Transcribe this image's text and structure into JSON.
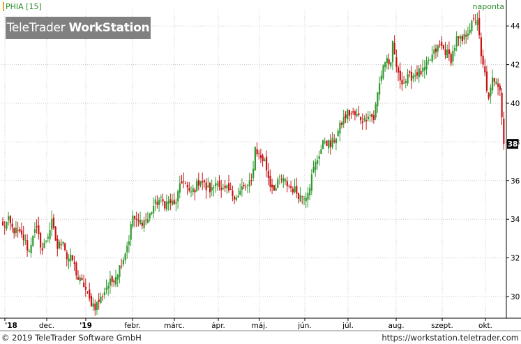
{
  "header": {
    "symbol": "PHIA [15]",
    "interval": "naponta",
    "watermark_regular": "TeleTrader ",
    "watermark_bold": "WorkStation"
  },
  "footer": {
    "copyright": "© 2019 TeleTrader Software GmbH",
    "url": "https://workstation.teletrader.com"
  },
  "colors": {
    "up": "#2e9a2e",
    "down": "#c81414",
    "grid": "#c8c8c8",
    "axis": "#000000",
    "last_price_bg": "#000000"
  },
  "chart_data": {
    "type": "candlestick",
    "ylim": [
      29,
      44.5
    ],
    "y_ticks": [
      30,
      32,
      34,
      36,
      38,
      40,
      42,
      44
    ],
    "x_ticks": [
      "'18",
      "dec.",
      "'19",
      "febr.",
      "márc.",
      "ápr.",
      "máj.",
      "jún.",
      "júl.",
      "aug.",
      "szept.",
      "okt."
    ],
    "bold_x_ticks": [
      "'18",
      "'19"
    ],
    "last_price_label": "38",
    "grid": true,
    "anchors": [
      [
        0,
        33.6
      ],
      [
        3,
        33.9
      ],
      [
        5,
        33.5
      ],
      [
        8,
        33.3
      ],
      [
        11,
        33.0
      ],
      [
        14,
        32.3
      ],
      [
        16,
        33.3
      ],
      [
        18,
        33.4
      ],
      [
        21,
        32.4
      ],
      [
        24,
        33.2
      ],
      [
        26,
        33.8
      ],
      [
        29,
        32.5
      ],
      [
        32,
        33.0
      ],
      [
        34,
        32.0
      ],
      [
        37,
        31.9
      ],
      [
        40,
        30.9
      ],
      [
        43,
        30.6
      ],
      [
        46,
        29.8
      ],
      [
        49,
        29.5
      ],
      [
        52,
        29.9
      ],
      [
        55,
        30.5
      ],
      [
        58,
        30.8
      ],
      [
        61,
        31.3
      ],
      [
        64,
        32.0
      ],
      [
        67,
        33.0
      ],
      [
        69,
        34.2
      ],
      [
        71,
        33.8
      ],
      [
        74,
        33.9
      ],
      [
        77,
        34.0
      ],
      [
        80,
        34.7
      ],
      [
        83,
        35.0
      ],
      [
        86,
        34.8
      ],
      [
        89,
        34.9
      ],
      [
        91,
        34.7
      ],
      [
        94,
        35.6
      ],
      [
        96,
        36.1
      ],
      [
        99,
        35.3
      ],
      [
        102,
        35.6
      ],
      [
        105,
        36.1
      ],
      [
        108,
        35.6
      ],
      [
        111,
        35.5
      ],
      [
        114,
        36.1
      ],
      [
        116,
        35.4
      ],
      [
        119,
        35.5
      ],
      [
        122,
        35.3
      ],
      [
        125,
        35.2
      ],
      [
        127,
        35.6
      ],
      [
        130,
        35.7
      ],
      [
        132,
        35.9
      ],
      [
        134,
        37.7
      ],
      [
        136,
        37.3
      ],
      [
        139,
        37.0
      ],
      [
        142,
        35.8
      ],
      [
        145,
        35.6
      ],
      [
        147,
        36.1
      ],
      [
        150,
        35.9
      ],
      [
        152,
        35.7
      ],
      [
        155,
        35.5
      ],
      [
        158,
        35.2
      ],
      [
        161,
        35.3
      ],
      [
        163,
        35.8
      ],
      [
        165,
        36.6
      ],
      [
        168,
        37.4
      ],
      [
        171,
        38.1
      ],
      [
        174,
        37.8
      ],
      [
        177,
        38.3
      ],
      [
        180,
        39.0
      ],
      [
        183,
        39.5
      ],
      [
        186,
        39.4
      ],
      [
        189,
        39.3
      ],
      [
        192,
        39.1
      ],
      [
        194,
        39.5
      ],
      [
        197,
        39.2
      ],
      [
        199,
        40.5
      ],
      [
        202,
        42.0
      ],
      [
        204,
        42.3
      ],
      [
        206,
        41.9
      ],
      [
        207,
        43.0
      ],
      [
        210,
        41.4
      ],
      [
        213,
        41.1
      ],
      [
        215,
        41.3
      ],
      [
        217,
        41.4
      ],
      [
        220,
        41.6
      ],
      [
        223,
        41.6
      ],
      [
        226,
        42.1
      ],
      [
        229,
        42.6
      ],
      [
        232,
        43.0
      ],
      [
        235,
        42.7
      ],
      [
        238,
        42.3
      ],
      [
        241,
        43.3
      ],
      [
        244,
        43.2
      ],
      [
        247,
        43.8
      ],
      [
        250,
        44.2
      ],
      [
        252,
        44.4
      ],
      [
        254,
        42.3
      ],
      [
        256,
        41.5
      ],
      [
        258,
        40.1
      ],
      [
        260,
        41.2
      ],
      [
        262,
        41.3
      ],
      [
        264,
        40.8
      ],
      [
        266,
        37.9
      ]
    ],
    "n_bars": 267
  }
}
